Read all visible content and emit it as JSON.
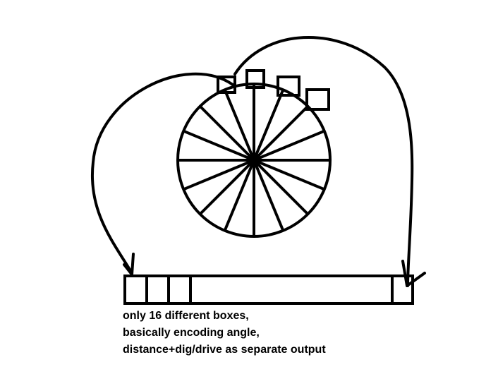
{
  "diagram": {
    "caption_lines": [
      "only 16 different boxes,",
      "basically encoding angle,",
      "distance+dig/drive as separate output"
    ],
    "spoke_count": 16,
    "stroke_color": "#000000",
    "background_color": "#ffffff",
    "icons": {
      "left_arrow": "arrowhead-down-icon",
      "right_arrow": "arrowhead-down-icon"
    }
  }
}
